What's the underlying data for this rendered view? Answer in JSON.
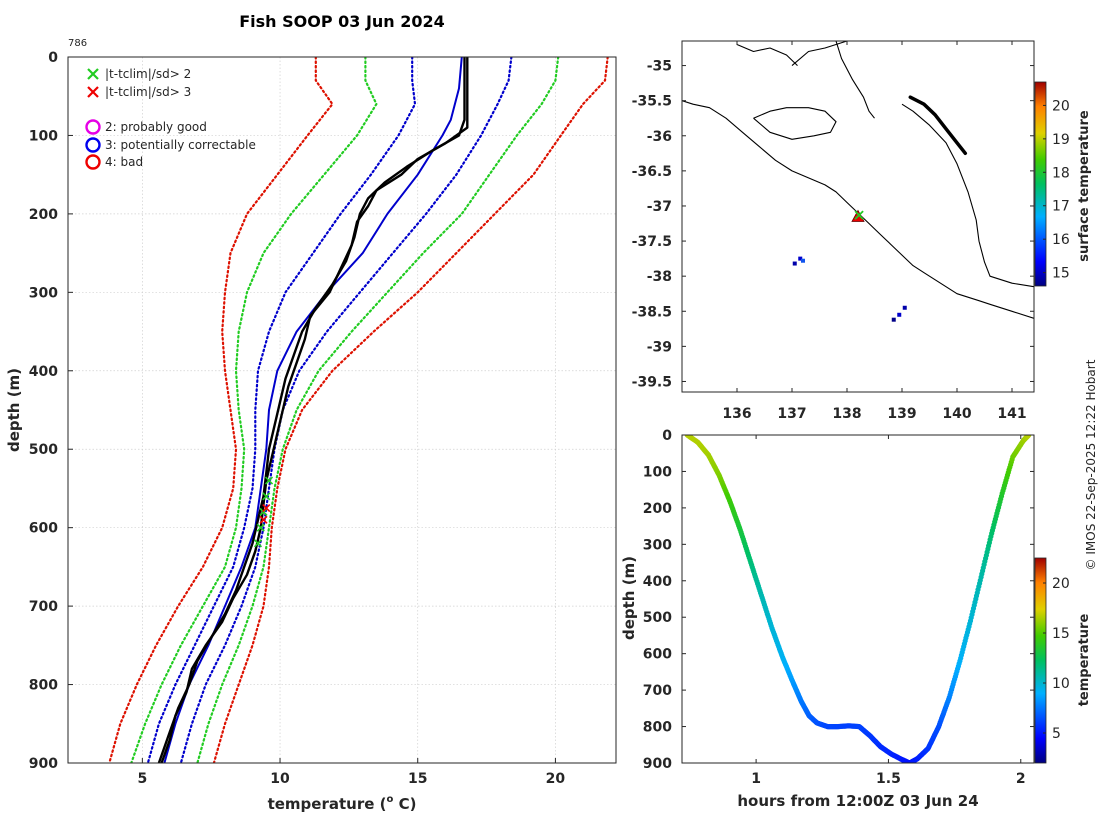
{
  "figure": {
    "title": "Fish SOOP 03 Jun 2024",
    "profile_id": "786",
    "credit": "© IMOS 22-Sep-2025 12:22 Hobart"
  },
  "colors": {
    "qc2": "#e600e6",
    "qc3": "#0000ee",
    "qc4": "#ee0000",
    "x2": "#22cc22",
    "x3": "#ee0000",
    "sd2": "#22cc22",
    "sd3": "#dd1100",
    "clim_blue": "#0000cc",
    "profile": "#000000"
  },
  "chart_data": [
    {
      "id": "profile",
      "type": "line",
      "xlabel": "temperature (",
      "xlabel_sup": "o",
      "xlabel_end": " C)",
      "ylabel": "depth (m)",
      "xlim": [
        2.3,
        22.2
      ],
      "ylim": [
        900,
        0
      ],
      "xticks": [
        5,
        10,
        15,
        20
      ],
      "yticks": [
        0,
        100,
        200,
        300,
        400,
        500,
        600,
        700,
        800,
        900
      ],
      "grid": true,
      "legend": {
        "placement": "top-left",
        "entries": [
          {
            "marker": "x",
            "color_key": "x2",
            "label": "|t-tclim|/sd> 2"
          },
          {
            "marker": "x",
            "color_key": "x3",
            "label": "|t-tclim|/sd> 3"
          },
          {
            "marker": "o",
            "color_key": "qc2",
            "label": "2: probably good"
          },
          {
            "marker": "o",
            "color_key": "qc3",
            "label": "3: potentially correctable"
          },
          {
            "marker": "o",
            "color_key": "qc4",
            "label": "4: bad"
          }
        ]
      },
      "series": [
        {
          "name": "climatology mean",
          "style": "solid",
          "color_key": "clim_blue",
          "depth": [
            0,
            40,
            80,
            100,
            150,
            200,
            250,
            300,
            350,
            400,
            450,
            500,
            550,
            600,
            650,
            700,
            750,
            800,
            850,
            900
          ],
          "temp": [
            16.6,
            16.5,
            16.2,
            15.9,
            15.0,
            13.9,
            13.0,
            11.7,
            10.6,
            9.9,
            9.6,
            9.5,
            9.3,
            9.1,
            8.6,
            8.0,
            7.4,
            6.7,
            6.2,
            5.8
          ]
        },
        {
          "name": "mean -2sd",
          "style": "dotted",
          "color_key": "sd2",
          "depth": [
            0,
            30,
            60,
            100,
            150,
            200,
            250,
            300,
            350,
            400,
            450,
            500,
            550,
            600,
            650,
            700,
            750,
            800,
            850,
            900
          ],
          "temp": [
            13.1,
            13.1,
            13.5,
            12.8,
            11.6,
            10.4,
            9.4,
            8.8,
            8.5,
            8.4,
            8.5,
            8.7,
            8.6,
            8.4,
            8.0,
            7.2,
            6.4,
            5.7,
            5.1,
            4.6
          ]
        },
        {
          "name": "mean +2sd",
          "style": "dotted",
          "color_key": "sd2",
          "depth": [
            0,
            30,
            60,
            100,
            150,
            200,
            250,
            300,
            350,
            400,
            450,
            500,
            550,
            600,
            650,
            700,
            750,
            800,
            850,
            900
          ],
          "temp": [
            20.1,
            20.0,
            19.5,
            18.6,
            17.6,
            16.6,
            15.2,
            13.9,
            12.6,
            11.4,
            10.6,
            10.1,
            9.8,
            9.6,
            9.4,
            9.0,
            8.5,
            7.9,
            7.4,
            7.0
          ]
        },
        {
          "name": "mean -3sd",
          "style": "dotted",
          "color_key": "sd3",
          "depth": [
            0,
            30,
            60,
            100,
            150,
            200,
            250,
            300,
            350,
            400,
            450,
            500,
            550,
            600,
            650,
            700,
            750,
            800,
            850,
            900
          ],
          "temp": [
            11.3,
            11.3,
            11.9,
            11.0,
            9.9,
            8.8,
            8.2,
            8.0,
            7.9,
            8.0,
            8.2,
            8.4,
            8.3,
            7.9,
            7.2,
            6.3,
            5.5,
            4.8,
            4.2,
            3.8
          ]
        },
        {
          "name": "mean +3sd",
          "style": "dotted",
          "color_key": "sd3",
          "depth": [
            0,
            30,
            60,
            100,
            150,
            200,
            250,
            300,
            350,
            400,
            450,
            500,
            550,
            600,
            650,
            700,
            750,
            800,
            850,
            900
          ],
          "temp": [
            21.9,
            21.8,
            21.0,
            20.2,
            19.2,
            17.8,
            16.4,
            15.0,
            13.4,
            11.9,
            10.8,
            10.2,
            9.9,
            9.7,
            9.6,
            9.4,
            9.0,
            8.5,
            8.0,
            7.6
          ]
        },
        {
          "name": "mean -1sd",
          "style": "dotted",
          "color_key": "clim_blue",
          "depth": [
            0,
            30,
            60,
            100,
            150,
            200,
            250,
            300,
            350,
            400,
            450,
            500,
            550,
            600,
            650,
            700,
            750,
            800,
            850,
            900
          ],
          "temp": [
            14.8,
            14.8,
            14.9,
            14.3,
            13.3,
            12.2,
            11.2,
            10.2,
            9.6,
            9.2,
            9.1,
            9.1,
            9.0,
            8.7,
            8.3,
            7.6,
            6.9,
            6.2,
            5.6,
            5.2
          ]
        },
        {
          "name": "mean +1sd",
          "style": "dotted",
          "color_key": "clim_blue",
          "depth": [
            0,
            30,
            60,
            100,
            150,
            200,
            250,
            300,
            350,
            400,
            450,
            500,
            550,
            600,
            650,
            700,
            750,
            800,
            850,
            900
          ],
          "temp": [
            18.4,
            18.3,
            17.9,
            17.3,
            16.4,
            15.3,
            14.1,
            12.9,
            11.7,
            10.7,
            10.1,
            9.8,
            9.6,
            9.4,
            9.1,
            8.6,
            8.0,
            7.3,
            6.8,
            6.4
          ]
        },
        {
          "name": "profile down",
          "style": "solid",
          "color_key": "profile",
          "depth": [
            0,
            40,
            90,
            110,
            130,
            150,
            170,
            190,
            210,
            240,
            270,
            300,
            330,
            360,
            390,
            420,
            450,
            480,
            510,
            540,
            570,
            600,
            630,
            660,
            690,
            720,
            750,
            780,
            810,
            840,
            870,
            900
          ],
          "temp": [
            16.8,
            16.8,
            16.8,
            16.0,
            15.0,
            14.4,
            13.5,
            13.2,
            12.8,
            12.6,
            12.2,
            11.8,
            11.1,
            10.9,
            10.6,
            10.3,
            10.1,
            9.9,
            9.7,
            9.5,
            9.4,
            9.3,
            9.1,
            8.8,
            8.3,
            7.9,
            7.3,
            6.8,
            6.6,
            6.2,
            6.0,
            5.7
          ]
        },
        {
          "name": "profile up",
          "style": "solid",
          "color_key": "profile",
          "depth": [
            0,
            40,
            80,
            100,
            120,
            140,
            160,
            180,
            200,
            230,
            260,
            290,
            320,
            350,
            380,
            410,
            440,
            470,
            500,
            530,
            560,
            590,
            620,
            650,
            680,
            710,
            740,
            770,
            800,
            830,
            860,
            900
          ],
          "temp": [
            16.7,
            16.7,
            16.7,
            16.5,
            15.5,
            14.6,
            13.8,
            13.2,
            12.9,
            12.7,
            12.4,
            11.9,
            11.3,
            10.8,
            10.5,
            10.2,
            10.0,
            9.8,
            9.6,
            9.5,
            9.4,
            9.2,
            9.0,
            8.7,
            8.4,
            8.0,
            7.5,
            7.0,
            6.7,
            6.3,
            6.0,
            5.6
          ]
        }
      ],
      "flags": [
        {
          "marker": "x",
          "color_key": "x2",
          "depth": [
            540,
            560,
            580,
            600,
            620
          ],
          "temp": [
            9.6,
            9.5,
            9.4,
            9.3,
            9.2
          ]
        },
        {
          "marker": "x",
          "color_key": "x3",
          "depth": [
            575,
            590
          ],
          "temp": [
            9.5,
            9.4
          ]
        }
      ]
    },
    {
      "id": "map",
      "type": "scatter",
      "xlim": [
        135.0,
        141.4
      ],
      "ylim": [
        -39.65,
        -34.65
      ],
      "xticks": [
        136,
        137,
        138,
        139,
        140,
        141
      ],
      "yticks": [
        -35,
        -35.5,
        -36,
        -36.5,
        -37,
        -37.5,
        -38,
        -38.5,
        -39,
        -39.5
      ],
      "colorbar": {
        "label": "surface temperature",
        "min": 14.6,
        "max": 20.7,
        "ticks": [
          15,
          16,
          17,
          18,
          19,
          20,
          21
        ]
      },
      "coast": [
        {
          "lon": [
            135.0,
            135.2,
            135.5,
            135.8,
            136.1,
            136.4,
            136.7,
            137.0,
            137.3,
            137.6,
            137.8,
            138.0,
            138.2,
            138.4,
            138.6,
            138.8,
            139.0,
            139.2,
            139.4,
            139.6,
            139.8,
            140.0,
            140.2,
            140.4,
            140.6,
            140.8,
            141.0,
            141.4
          ],
          "lat": [
            -35.5,
            -35.55,
            -35.6,
            -35.75,
            -35.95,
            -36.15,
            -36.35,
            -36.5,
            -36.6,
            -36.7,
            -36.8,
            -36.95,
            -37.1,
            -37.25,
            -37.4,
            -37.55,
            -37.7,
            -37.85,
            -37.95,
            -38.05,
            -38.15,
            -38.25,
            -38.3,
            -38.35,
            -38.4,
            -38.45,
            -38.5,
            -38.6
          ]
        },
        {
          "lon": [
            136.3,
            136.6,
            136.9,
            137.3,
            137.6,
            137.8,
            137.7,
            137.4,
            137.0,
            136.6,
            136.3
          ],
          "lat": [
            -35.75,
            -35.65,
            -35.6,
            -35.6,
            -35.65,
            -35.8,
            -35.95,
            -36.0,
            -36.05,
            -35.95,
            -35.75
          ]
        },
        {
          "lon": [
            137.8,
            137.9,
            138.1,
            138.3,
            138.4,
            138.5
          ],
          "lat": [
            -34.65,
            -34.9,
            -35.2,
            -35.45,
            -35.65,
            -35.75
          ]
        },
        {
          "lon": [
            136.0,
            136.3,
            136.6,
            136.9,
            137.1
          ],
          "lat": [
            -34.7,
            -34.8,
            -34.75,
            -34.85,
            -35.0
          ]
        },
        {
          "lon": [
            137.0,
            137.3,
            137.6,
            137.8,
            138.0
          ],
          "lat": [
            -35.0,
            -34.8,
            -34.75,
            -34.7,
            -34.65
          ]
        },
        {
          "lon": [
            139.0,
            139.2,
            139.5,
            139.8,
            140.0,
            140.2,
            140.35,
            140.4,
            140.5,
            140.6,
            141.0,
            141.4
          ],
          "lat": [
            -35.55,
            -35.65,
            -35.85,
            -36.1,
            -36.4,
            -36.8,
            -37.2,
            -37.5,
            -37.8,
            -38.0,
            -38.1,
            -38.15
          ]
        }
      ],
      "track": {
        "lon": [
          139.15,
          139.4,
          139.6,
          139.8,
          140.0,
          140.15
        ],
        "lat": [
          -35.45,
          -35.55,
          -35.7,
          -35.9,
          -36.1,
          -36.25
        ]
      },
      "markers": [
        {
          "marker": "triangle",
          "color_key": "qc4",
          "lon": 138.2,
          "lat": -37.15
        },
        {
          "marker": "x",
          "color_key": "x2",
          "lon": 138.22,
          "lat": -37.13
        }
      ],
      "speckles": [
        {
          "lon": 137.15,
          "lat": -37.75,
          "color": "#0000cc"
        },
        {
          "lon": 137.2,
          "lat": -37.78,
          "color": "#1155ee"
        },
        {
          "lon": 137.05,
          "lat": -37.82,
          "color": "#0000aa"
        },
        {
          "lon": 139.05,
          "lat": -38.45,
          "color": "#0000aa"
        },
        {
          "lon": 138.95,
          "lat": -38.55,
          "color": "#0000cc"
        },
        {
          "lon": 138.85,
          "lat": -38.62,
          "color": "#000088"
        }
      ]
    },
    {
      "id": "depth_time",
      "type": "scatter",
      "xlabel": "hours from 12:00Z 03 Jun 24",
      "ylabel": "depth (m)",
      "xlim": [
        0.72,
        2.05
      ],
      "ylim": [
        900,
        0
      ],
      "xticks": [
        1,
        1.5,
        2
      ],
      "yticks": [
        0,
        100,
        200,
        300,
        400,
        500,
        600,
        700,
        800,
        900
      ],
      "colorbar": {
        "label": "temperature",
        "min": 2,
        "max": 22.5,
        "ticks": [
          5,
          10,
          15,
          20
        ]
      },
      "points": {
        "hours": [
          0.74,
          0.78,
          0.82,
          0.86,
          0.9,
          0.94,
          0.98,
          1.02,
          1.06,
          1.1,
          1.14,
          1.17,
          1.2,
          1.23,
          1.27,
          1.31,
          1.35,
          1.39,
          1.43,
          1.47,
          1.51,
          1.55,
          1.58,
          1.61,
          1.65,
          1.69,
          1.73,
          1.77,
          1.81,
          1.85,
          1.89,
          1.93,
          1.97,
          2.01,
          2.03
        ],
        "depth": [
          0,
          20,
          55,
          110,
          180,
          260,
          350,
          440,
          530,
          610,
          680,
          730,
          770,
          790,
          800,
          800,
          798,
          800,
          825,
          855,
          875,
          890,
          900,
          888,
          860,
          800,
          720,
          620,
          510,
          390,
          270,
          160,
          60,
          15,
          0
        ],
        "temp": [
          16.7,
          16.6,
          16.4,
          15.8,
          14.5,
          13.2,
          11.8,
          10.6,
          9.8,
          9.3,
          8.4,
          7.6,
          7.0,
          6.6,
          6.3,
          6.2,
          6.1,
          6.2,
          5.9,
          5.6,
          5.4,
          5.1,
          4.9,
          5.2,
          5.8,
          6.4,
          7.8,
          9.1,
          9.8,
          10.7,
          12.0,
          13.6,
          15.4,
          16.2,
          16.7
        ]
      }
    }
  ]
}
